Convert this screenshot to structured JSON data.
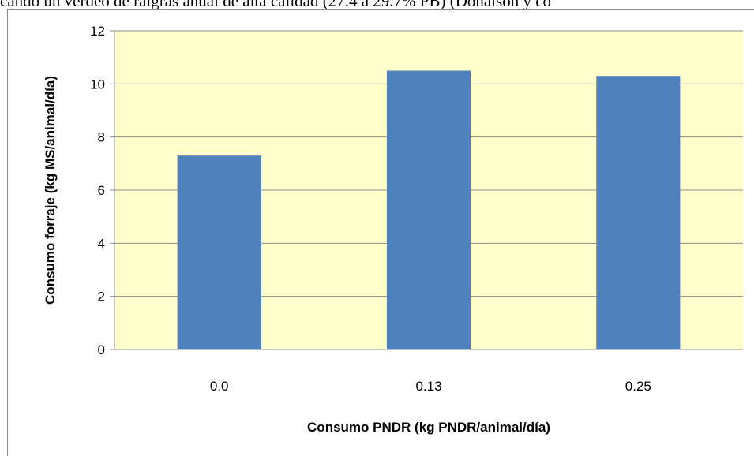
{
  "document": {
    "text_above": "cando un verdeo de raigrás anual de alta calidad (27.4 a 29.7% PB) (Donalson y co"
  },
  "chart_data": {
    "type": "bar",
    "categories": [
      "0.0",
      "0.13",
      "0.25"
    ],
    "values": [
      7.3,
      10.5,
      10.3
    ],
    "title": "",
    "xlabel": "Consumo PNDR (kg PNDR/animal/día)",
    "ylabel": "Consumo forraje (kg MS/animal/día)",
    "ylim": [
      0,
      12
    ],
    "yticks": [
      "0",
      "2",
      "4",
      "6",
      "8",
      "10",
      "12"
    ],
    "grid": true,
    "legend": "none",
    "colors": {
      "bar": "#4f81bd",
      "plot_background": "#ffffcc",
      "gridline": "#8c8c8c"
    }
  }
}
